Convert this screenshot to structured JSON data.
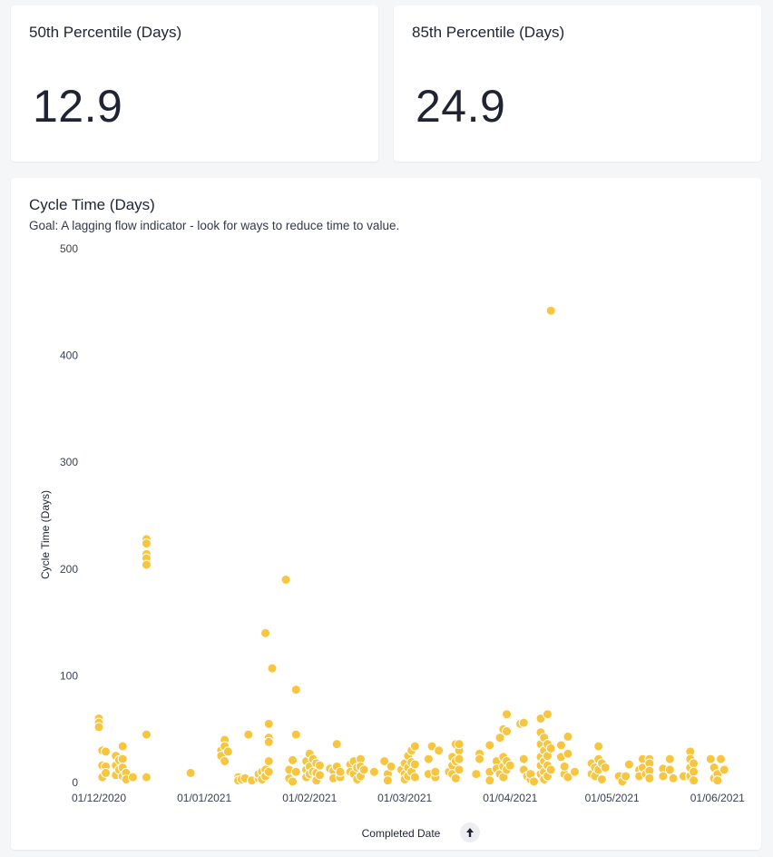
{
  "kpis": [
    {
      "title": "50th Percentile (Days)",
      "value": "12.9"
    },
    {
      "title": "85th Percentile (Days)",
      "value": "24.9"
    }
  ],
  "chart": {
    "title": "Cycle Time (Days)",
    "subtitle": "Goal: A lagging flow indicator - look for ways to reduce time to value.",
    "sort_icon": "arrow-up-icon",
    "point_color": "#f7c63e"
  },
  "chart_data": {
    "type": "scatter",
    "title": "Cycle Time (Days)",
    "xlabel": "Completed Date",
    "ylabel": "Cycle Time (Days)",
    "ylim": [
      0,
      500
    ],
    "xlim": [
      "2020-12-01",
      "2021-06-08"
    ],
    "yticks": [
      0,
      100,
      200,
      300,
      400,
      500
    ],
    "xticks": [
      {
        "date": "2020-12-01",
        "label": "01/12/2020"
      },
      {
        "date": "2021-01-01",
        "label": "01/01/2021"
      },
      {
        "date": "2021-02-01",
        "label": "01/02/2021"
      },
      {
        "date": "2021-03-01",
        "label": "01/03/2021"
      },
      {
        "date": "2021-04-01",
        "label": "01/04/2021"
      },
      {
        "date": "2021-05-01",
        "label": "01/05/2021"
      },
      {
        "date": "2021-06-01",
        "label": "01/06/2021"
      }
    ],
    "grid": false,
    "points": [
      [
        "2020-12-01",
        60
      ],
      [
        "2020-12-01",
        56
      ],
      [
        "2020-12-01",
        52
      ],
      [
        "2020-12-02",
        30
      ],
      [
        "2020-12-02",
        16
      ],
      [
        "2020-12-02",
        5
      ],
      [
        "2020-12-03",
        29
      ],
      [
        "2020-12-03",
        15
      ],
      [
        "2020-12-03",
        9
      ],
      [
        "2020-12-06",
        25
      ],
      [
        "2020-12-06",
        16
      ],
      [
        "2020-12-06",
        7
      ],
      [
        "2020-12-07",
        21
      ],
      [
        "2020-12-07",
        12
      ],
      [
        "2020-12-08",
        34
      ],
      [
        "2020-12-08",
        22
      ],
      [
        "2020-12-08",
        14
      ],
      [
        "2020-12-08",
        6
      ],
      [
        "2020-12-09",
        9
      ],
      [
        "2020-12-09",
        3
      ],
      [
        "2020-12-11",
        5
      ],
      [
        "2020-12-15",
        228
      ],
      [
        "2020-12-15",
        224
      ],
      [
        "2020-12-15",
        214
      ],
      [
        "2020-12-15",
        210
      ],
      [
        "2020-12-15",
        204
      ],
      [
        "2020-12-15",
        45
      ],
      [
        "2020-12-15",
        5
      ],
      [
        "2020-12-28",
        9
      ],
      [
        "2021-01-06",
        30
      ],
      [
        "2021-01-06",
        25
      ],
      [
        "2021-01-07",
        40
      ],
      [
        "2021-01-07",
        34
      ],
      [
        "2021-01-07",
        20
      ],
      [
        "2021-01-08",
        29
      ],
      [
        "2021-01-11",
        5
      ],
      [
        "2021-01-11",
        2
      ],
      [
        "2021-01-12",
        3
      ],
      [
        "2021-01-13",
        4
      ],
      [
        "2021-01-14",
        45
      ],
      [
        "2021-01-15",
        2
      ],
      [
        "2021-01-17",
        4
      ],
      [
        "2021-01-17",
        8
      ],
      [
        "2021-01-18",
        10
      ],
      [
        "2021-01-18",
        3
      ],
      [
        "2021-01-19",
        140
      ],
      [
        "2021-01-19",
        12
      ],
      [
        "2021-01-19",
        6
      ],
      [
        "2021-01-20",
        55
      ],
      [
        "2021-01-20",
        42
      ],
      [
        "2021-01-20",
        38
      ],
      [
        "2021-01-20",
        20
      ],
      [
        "2021-01-20",
        10
      ],
      [
        "2021-01-21",
        107
      ],
      [
        "2021-01-25",
        190
      ],
      [
        "2021-01-26",
        4
      ],
      [
        "2021-01-26",
        12
      ],
      [
        "2021-01-27",
        21
      ],
      [
        "2021-01-27",
        1
      ],
      [
        "2021-01-28",
        87
      ],
      [
        "2021-01-28",
        45
      ],
      [
        "2021-01-28",
        10
      ],
      [
        "2021-01-31",
        20
      ],
      [
        "2021-01-31",
        12
      ],
      [
        "2021-01-31",
        5
      ],
      [
        "2021-02-01",
        27
      ],
      [
        "2021-02-01",
        15
      ],
      [
        "2021-02-01",
        8
      ],
      [
        "2021-02-02",
        22
      ],
      [
        "2021-02-02",
        10
      ],
      [
        "2021-02-03",
        18
      ],
      [
        "2021-02-03",
        9
      ],
      [
        "2021-02-03",
        2
      ],
      [
        "2021-02-04",
        16
      ],
      [
        "2021-02-04",
        7
      ],
      [
        "2021-02-07",
        13
      ],
      [
        "2021-02-08",
        11
      ],
      [
        "2021-02-08",
        4
      ],
      [
        "2021-02-09",
        36
      ],
      [
        "2021-02-09",
        15
      ],
      [
        "2021-02-10",
        5
      ],
      [
        "2021-02-10",
        10
      ],
      [
        "2021-02-13",
        17
      ],
      [
        "2021-02-13",
        10
      ],
      [
        "2021-02-14",
        20
      ],
      [
        "2021-02-14",
        8
      ],
      [
        "2021-02-15",
        14
      ],
      [
        "2021-02-15",
        3
      ],
      [
        "2021-02-16",
        22
      ],
      [
        "2021-02-16",
        15
      ],
      [
        "2021-02-16",
        6
      ],
      [
        "2021-02-17",
        12
      ],
      [
        "2021-02-20",
        10
      ],
      [
        "2021-02-23",
        20
      ],
      [
        "2021-02-24",
        8
      ],
      [
        "2021-02-24",
        2
      ],
      [
        "2021-02-25",
        15
      ],
      [
        "2021-02-28",
        12
      ],
      [
        "2021-03-01",
        18
      ],
      [
        "2021-03-01",
        8
      ],
      [
        "2021-03-01",
        3
      ],
      [
        "2021-03-02",
        25
      ],
      [
        "2021-03-02",
        14
      ],
      [
        "2021-03-02",
        6
      ],
      [
        "2021-03-03",
        30
      ],
      [
        "2021-03-03",
        19
      ],
      [
        "2021-03-03",
        10
      ],
      [
        "2021-03-04",
        34
      ],
      [
        "2021-03-04",
        17
      ],
      [
        "2021-03-04",
        5
      ],
      [
        "2021-03-08",
        22
      ],
      [
        "2021-03-08",
        8
      ],
      [
        "2021-03-09",
        34
      ],
      [
        "2021-03-10",
        5
      ],
      [
        "2021-03-10",
        10
      ],
      [
        "2021-03-11",
        30
      ],
      [
        "2021-03-14",
        10
      ],
      [
        "2021-03-15",
        24
      ],
      [
        "2021-03-15",
        16
      ],
      [
        "2021-03-15",
        8
      ],
      [
        "2021-03-16",
        36
      ],
      [
        "2021-03-16",
        20
      ],
      [
        "2021-03-16",
        4
      ],
      [
        "2021-03-17",
        30
      ],
      [
        "2021-03-17",
        12
      ],
      [
        "2021-03-17",
        22
      ],
      [
        "2021-03-17",
        36
      ],
      [
        "2021-03-22",
        8
      ],
      [
        "2021-03-23",
        27
      ],
      [
        "2021-03-23",
        22
      ],
      [
        "2021-03-26",
        35
      ],
      [
        "2021-03-26",
        10
      ],
      [
        "2021-03-26",
        2
      ],
      [
        "2021-03-28",
        20
      ],
      [
        "2021-03-28",
        13
      ],
      [
        "2021-03-29",
        42
      ],
      [
        "2021-03-29",
        8
      ],
      [
        "2021-03-30",
        50
      ],
      [
        "2021-03-30",
        24
      ],
      [
        "2021-03-30",
        15
      ],
      [
        "2021-03-30",
        5
      ],
      [
        "2021-03-31",
        64
      ],
      [
        "2021-03-31",
        48
      ],
      [
        "2021-03-31",
        20
      ],
      [
        "2021-03-31",
        12
      ],
      [
        "2021-04-01",
        16
      ],
      [
        "2021-04-04",
        55
      ],
      [
        "2021-04-05",
        56
      ],
      [
        "2021-04-05",
        22
      ],
      [
        "2021-04-05",
        12
      ],
      [
        "2021-04-06",
        6
      ],
      [
        "2021-04-07",
        3
      ],
      [
        "2021-04-07",
        8
      ],
      [
        "2021-04-08",
        1
      ],
      [
        "2021-04-10",
        60
      ],
      [
        "2021-04-10",
        47
      ],
      [
        "2021-04-10",
        36
      ],
      [
        "2021-04-10",
        24
      ],
      [
        "2021-04-10",
        16
      ],
      [
        "2021-04-10",
        8
      ],
      [
        "2021-04-11",
        42
      ],
      [
        "2021-04-11",
        30
      ],
      [
        "2021-04-11",
        20
      ],
      [
        "2021-04-11",
        10
      ],
      [
        "2021-04-11",
        3
      ],
      [
        "2021-04-12",
        64
      ],
      [
        "2021-04-12",
        36
      ],
      [
        "2021-04-12",
        25
      ],
      [
        "2021-04-12",
        16
      ],
      [
        "2021-04-12",
        6
      ],
      [
        "2021-04-13",
        442
      ],
      [
        "2021-04-13",
        32
      ],
      [
        "2021-04-13",
        12
      ],
      [
        "2021-04-16",
        35
      ],
      [
        "2021-04-16",
        24
      ],
      [
        "2021-04-17",
        8
      ],
      [
        "2021-04-17",
        15
      ],
      [
        "2021-04-18",
        43
      ],
      [
        "2021-04-18",
        27
      ],
      [
        "2021-04-18",
        5
      ],
      [
        "2021-04-20",
        10
      ],
      [
        "2021-04-25",
        18
      ],
      [
        "2021-04-25",
        8
      ],
      [
        "2021-04-26",
        14
      ],
      [
        "2021-04-26",
        6
      ],
      [
        "2021-04-27",
        34
      ],
      [
        "2021-04-27",
        22
      ],
      [
        "2021-04-27",
        12
      ],
      [
        "2021-04-28",
        18
      ],
      [
        "2021-04-28",
        3
      ],
      [
        "2021-04-29",
        14
      ],
      [
        "2021-05-03",
        6
      ],
      [
        "2021-05-04",
        1
      ],
      [
        "2021-05-05",
        6
      ],
      [
        "2021-05-06",
        17
      ],
      [
        "2021-05-09",
        12
      ],
      [
        "2021-05-09",
        6
      ],
      [
        "2021-05-10",
        22
      ],
      [
        "2021-05-10",
        14
      ],
      [
        "2021-05-11",
        8
      ],
      [
        "2021-05-12",
        22
      ],
      [
        "2021-05-12",
        18
      ],
      [
        "2021-05-12",
        11
      ],
      [
        "2021-05-12",
        4
      ],
      [
        "2021-05-16",
        13
      ],
      [
        "2021-05-16",
        6
      ],
      [
        "2021-05-18",
        22
      ],
      [
        "2021-05-18",
        12
      ],
      [
        "2021-05-19",
        4
      ],
      [
        "2021-05-22",
        6
      ],
      [
        "2021-05-24",
        29
      ],
      [
        "2021-05-24",
        22
      ],
      [
        "2021-05-24",
        14
      ],
      [
        "2021-05-24",
        6
      ],
      [
        "2021-05-25",
        18
      ],
      [
        "2021-05-25",
        10
      ],
      [
        "2021-05-25",
        2
      ],
      [
        "2021-05-30",
        22
      ],
      [
        "2021-05-31",
        14
      ],
      [
        "2021-05-31",
        4
      ],
      [
        "2021-06-01",
        8
      ],
      [
        "2021-06-01",
        2
      ],
      [
        "2021-06-02",
        22
      ],
      [
        "2021-06-03",
        12
      ]
    ]
  }
}
